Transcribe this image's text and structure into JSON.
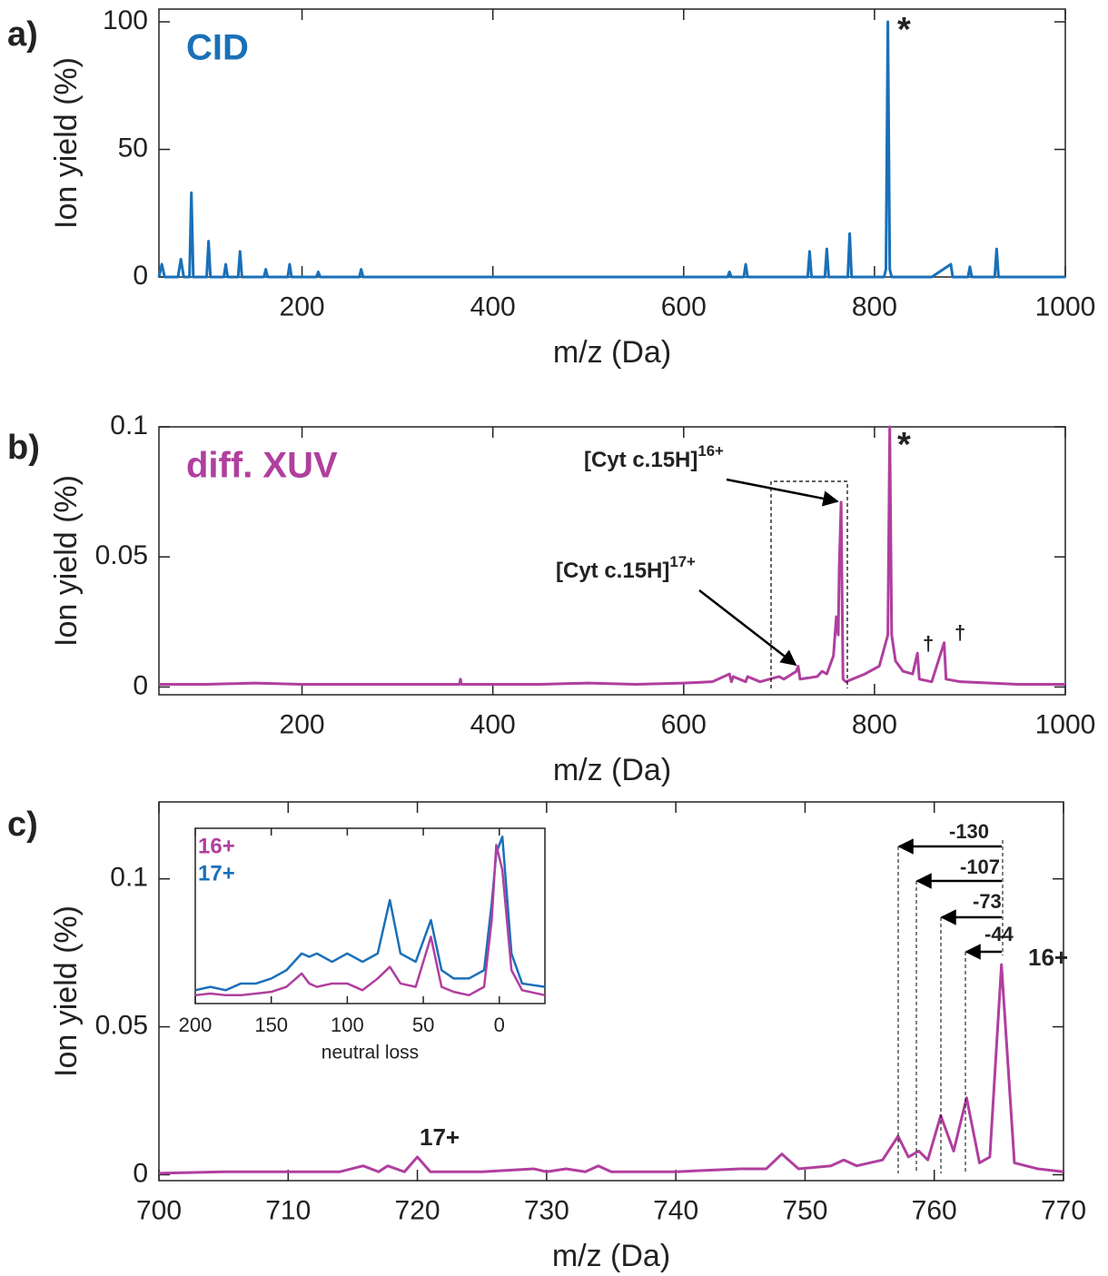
{
  "chart_data": [
    {
      "type": "line",
      "panel_label": "a)",
      "xlabel": "m/z (Da)",
      "ylabel": "Ion yield (%)",
      "xlim": [
        50,
        1000
      ],
      "ylim": [
        0,
        105
      ],
      "xticks": [
        200,
        400,
        600,
        800,
        1000
      ],
      "yticks": [
        0,
        50,
        100
      ],
      "x": [
        50,
        53,
        56,
        70,
        73,
        76,
        82,
        84,
        86,
        100,
        102,
        104,
        118,
        120,
        122,
        133,
        135,
        137,
        160,
        162,
        164,
        185,
        187,
        189,
        215,
        217,
        219,
        260,
        262,
        264,
        400,
        646,
        648,
        650,
        663,
        665,
        667,
        730,
        732,
        734,
        748,
        750,
        752,
        772,
        774,
        776,
        810,
        812,
        814,
        816,
        818,
        860,
        880,
        882,
        898,
        900,
        902,
        926,
        928,
        930,
        1000
      ],
      "series": [
        {
          "name": "CID",
          "color": "#1a70b8",
          "values": [
            0,
            5,
            0,
            0,
            7,
            0,
            0,
            33,
            0,
            0,
            14,
            0,
            0,
            5,
            0,
            0,
            10,
            0,
            0,
            3,
            0,
            0,
            5,
            0,
            0,
            2,
            0,
            0,
            3,
            0,
            0,
            0,
            2,
            0,
            0,
            5,
            0,
            0,
            10,
            0,
            0,
            11,
            0,
            0,
            17,
            0,
            0,
            3,
            100,
            3,
            0,
            0,
            5,
            0,
            0,
            4,
            0,
            0,
            11,
            0,
            0
          ]
        }
      ],
      "annotations": [
        {
          "text": "*"
        }
      ]
    },
    {
      "type": "line",
      "panel_label": "b)",
      "xlabel": "m/z (Da)",
      "ylabel": "Ion yield (%)",
      "xlim": [
        50,
        1000
      ],
      "ylim": [
        -0.003,
        0.1
      ],
      "xticks": [
        200,
        400,
        600,
        800,
        1000
      ],
      "yticks": [
        0,
        0.05,
        0.1
      ],
      "x": [
        50,
        100,
        150,
        200,
        250,
        300,
        350,
        365,
        366,
        367,
        400,
        450,
        500,
        550,
        600,
        630,
        648,
        650,
        652,
        665,
        667,
        680,
        700,
        705,
        718,
        720,
        722,
        740,
        745,
        750,
        755,
        757,
        760,
        762,
        763,
        765,
        767,
        770,
        790,
        805,
        814,
        816,
        818,
        822,
        830,
        840,
        845,
        847,
        860,
        873,
        875,
        890,
        950,
        1000
      ],
      "series": [
        {
          "name": "diff. XUV",
          "color": "#b03f9e",
          "values": [
            0.001,
            0.001,
            0.0015,
            0.001,
            0.001,
            0.001,
            0.001,
            0.001,
            0.003,
            0.001,
            0.001,
            0.001,
            0.0015,
            0.001,
            0.0015,
            0.002,
            0.005,
            0.002,
            0.004,
            0.002,
            0.004,
            0.002,
            0.004,
            0.003,
            0.006,
            0.008,
            0.003,
            0.004,
            0.006,
            0.005,
            0.01,
            0.012,
            0.027,
            0.02,
            0.045,
            0.071,
            0.003,
            0.002,
            0.005,
            0.008,
            0.02,
            0.1,
            0.02,
            0.01,
            0.006,
            0.005,
            0.013,
            0.003,
            0.002,
            0.017,
            0.003,
            0.002,
            0.001,
            0.001
          ]
        }
      ],
      "annotations": [
        {
          "text": "*"
        },
        {
          "text": "†"
        },
        {
          "text": "†"
        },
        {
          "text": "[Cyt c.15H]",
          "sup": "16+"
        },
        {
          "text": "[Cyt c.15H]",
          "sup": "17+"
        }
      ]
    },
    {
      "type": "line",
      "panel_label": "c)",
      "xlabel": "m/z (Da)",
      "ylabel": "Ion yield (%)",
      "xlim": [
        700,
        770
      ],
      "ylim": [
        -0.002,
        0.126
      ],
      "xticks": [
        700,
        710,
        720,
        730,
        740,
        750,
        760,
        770
      ],
      "yticks": [
        0,
        0.05,
        0.1
      ],
      "x": [
        700,
        705,
        710,
        714,
        715.8,
        717,
        717.7,
        719,
        720,
        721,
        725,
        729,
        730,
        731.5,
        733,
        734,
        735,
        740,
        745,
        747,
        748.2,
        749.5,
        752,
        753,
        754,
        755,
        756,
        757.2,
        758,
        758.8,
        759.5,
        760.5,
        761.5,
        762.5,
        763.5,
        764.3,
        765.2,
        766.2,
        768,
        770
      ],
      "series": [
        {
          "color": "#b03f9e",
          "values": [
            0.0005,
            0.001,
            0.001,
            0.001,
            0.003,
            0.001,
            0.003,
            0.001,
            0.006,
            0.001,
            0.001,
            0.002,
            0.001,
            0.002,
            0.001,
            0.003,
            0.001,
            0.001,
            0.002,
            0.002,
            0.007,
            0.002,
            0.003,
            0.005,
            0.003,
            0.004,
            0.005,
            0.013,
            0.006,
            0.008,
            0.005,
            0.02,
            0.008,
            0.026,
            0.004,
            0.006,
            0.071,
            0.004,
            0.002,
            0.001
          ]
        }
      ],
      "annotations": [
        {
          "text": "17+"
        },
        {
          "text": "16+"
        },
        {
          "text": "-130"
        },
        {
          "text": "-107"
        },
        {
          "text": "-73"
        },
        {
          "text": "-44"
        }
      ]
    },
    {
      "type": "line",
      "xlabel": "neutral loss",
      "xlim": [
        200,
        -30
      ],
      "ylim": [
        0,
        1.05
      ],
      "xticks": [
        200,
        150,
        100,
        50,
        0
      ],
      "x": [
        200,
        190,
        180,
        170,
        160,
        150,
        140,
        130,
        125,
        120,
        110,
        100,
        90,
        80,
        72,
        65,
        55,
        45,
        38,
        30,
        20,
        10,
        5,
        2,
        -2,
        -8,
        -15,
        -30
      ],
      "series": [
        {
          "name": "17+",
          "color": "#1a70b8",
          "values": [
            0.08,
            0.1,
            0.08,
            0.12,
            0.12,
            0.15,
            0.2,
            0.3,
            0.28,
            0.3,
            0.25,
            0.3,
            0.25,
            0.3,
            0.62,
            0.3,
            0.25,
            0.5,
            0.2,
            0.15,
            0.15,
            0.2,
            0.6,
            0.9,
            1,
            0.3,
            0.12,
            0.1
          ]
        },
        {
          "name": "16+",
          "color": "#b03f9e",
          "values": [
            0.05,
            0.06,
            0.05,
            0.05,
            0.06,
            0.07,
            0.1,
            0.18,
            0.12,
            0.1,
            0.12,
            0.12,
            0.08,
            0.15,
            0.22,
            0.12,
            0.1,
            0.4,
            0.1,
            0.07,
            0.05,
            0.1,
            0.5,
            0.95,
            0.8,
            0.2,
            0.08,
            0.05
          ]
        }
      ]
    }
  ]
}
